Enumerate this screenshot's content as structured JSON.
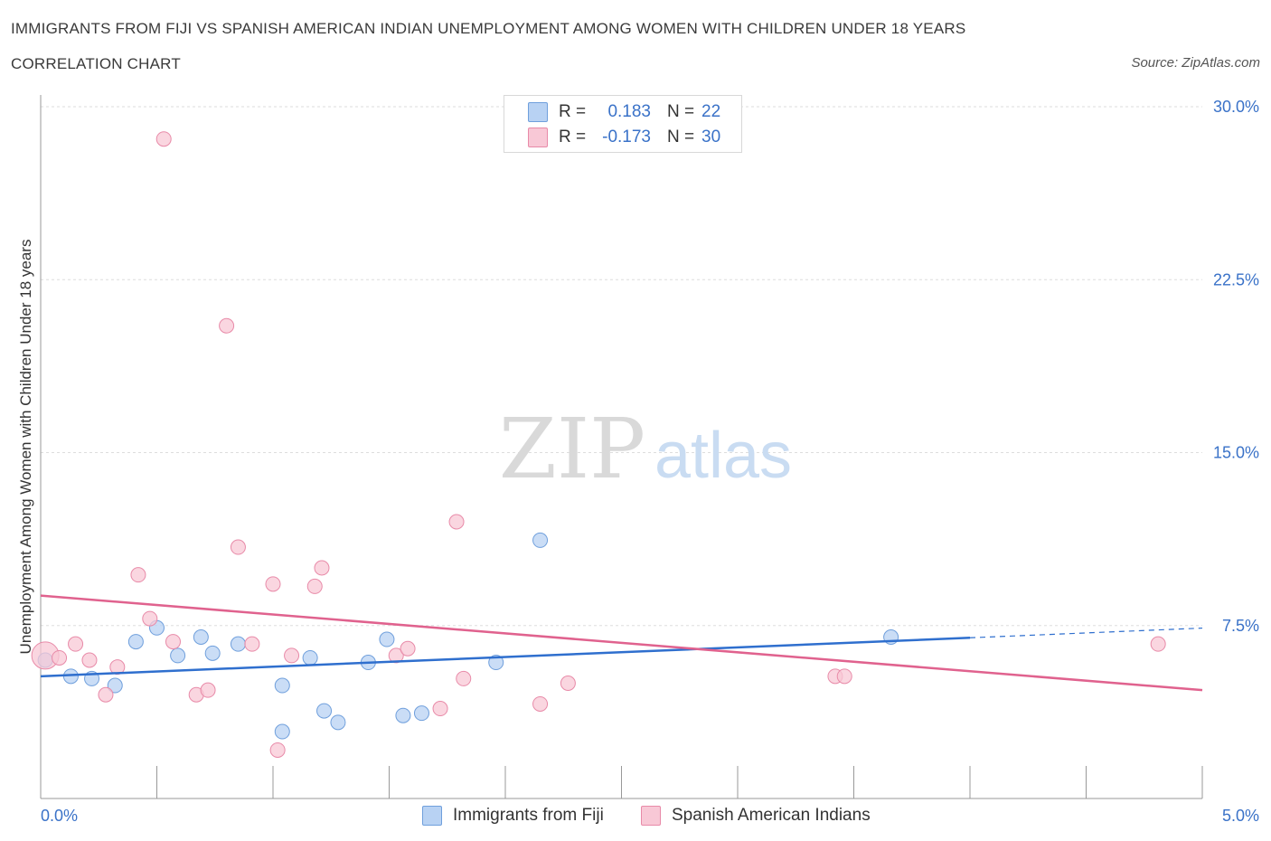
{
  "header": {
    "title": "IMMIGRANTS FROM FIJI VS SPANISH AMERICAN INDIAN UNEMPLOYMENT AMONG WOMEN WITH CHILDREN UNDER 18 YEARS",
    "subtitle": "CORRELATION CHART",
    "source": "Source: ZipAtlas.com"
  },
  "watermark": {
    "zip": "ZIP",
    "atlas": "atlas"
  },
  "legend": {
    "r_label": "R =",
    "n_label": "N =",
    "series": [
      {
        "r": "0.183",
        "n": "22"
      },
      {
        "r": "-0.173",
        "n": "30"
      }
    ]
  },
  "colors": {
    "blue_fill": "#b8d2f3",
    "blue_stroke": "#6f9fdc",
    "blue_line": "#2f6fce",
    "pink_fill": "#f8c8d6",
    "pink_stroke": "#e88aa8",
    "pink_line": "#e0628e",
    "tick_text": "#3a72c8",
    "grid": "#dddddd"
  },
  "chart_data": {
    "type": "scatter",
    "title": "IMMIGRANTS FROM FIJI VS SPANISH AMERICAN INDIAN UNEMPLOYMENT AMONG WOMEN WITH CHILDREN UNDER 18 YEARS",
    "xlabel": "",
    "ylabel": "Unemployment Among Women with Children Under 18 years",
    "xlim": [
      0,
      5
    ],
    "ylim": [
      0,
      30
    ],
    "x_tick_labels": [
      {
        "value": 0,
        "label": "0.0%"
      },
      {
        "value": 5,
        "label": "5.0%"
      }
    ],
    "y_tick_labels": [
      {
        "value": 7.5,
        "label": "7.5%"
      },
      {
        "value": 15,
        "label": "15.0%"
      },
      {
        "value": 22.5,
        "label": "22.5%"
      },
      {
        "value": 30,
        "label": "30.0%"
      }
    ],
    "grid": true,
    "legend_position": "bottom",
    "series": [
      {
        "name": "Immigrants from Fiji",
        "color": "#6f9fdc",
        "points": [
          [
            0.02,
            6.0
          ],
          [
            0.13,
            5.3
          ],
          [
            0.22,
            5.2
          ],
          [
            0.32,
            4.9
          ],
          [
            0.41,
            6.8
          ],
          [
            0.5,
            7.4
          ],
          [
            0.59,
            6.2
          ],
          [
            0.69,
            7.0
          ],
          [
            0.74,
            6.3
          ],
          [
            0.85,
            6.7
          ],
          [
            1.04,
            2.9
          ],
          [
            1.04,
            4.9
          ],
          [
            1.16,
            6.1
          ],
          [
            1.22,
            3.8
          ],
          [
            1.28,
            3.3
          ],
          [
            1.41,
            5.9
          ],
          [
            1.49,
            6.9
          ],
          [
            1.56,
            3.6
          ],
          [
            1.64,
            3.7
          ],
          [
            1.96,
            5.9
          ],
          [
            2.15,
            11.2
          ],
          [
            3.66,
            7.0
          ]
        ],
        "trend": {
          "x": [
            0,
            4.0
          ],
          "y": [
            5.3,
            6.97
          ]
        },
        "trend_dashed": {
          "x": [
            4.0,
            5.0
          ],
          "y": [
            6.97,
            7.39
          ]
        }
      },
      {
        "name": "Spanish American Indians",
        "color": "#e88aa8",
        "points": [
          [
            0.02,
            6.2
          ],
          [
            0.08,
            6.1
          ],
          [
            0.15,
            6.7
          ],
          [
            0.21,
            6.0
          ],
          [
            0.28,
            4.5
          ],
          [
            0.33,
            5.7
          ],
          [
            0.42,
            9.7
          ],
          [
            0.47,
            7.8
          ],
          [
            0.53,
            28.6
          ],
          [
            0.57,
            6.8
          ],
          [
            0.67,
            4.5
          ],
          [
            0.72,
            4.7
          ],
          [
            0.8,
            20.5
          ],
          [
            0.85,
            10.9
          ],
          [
            0.91,
            6.7
          ],
          [
            1.0,
            9.3
          ],
          [
            1.02,
            2.1
          ],
          [
            1.08,
            6.2
          ],
          [
            1.18,
            9.2
          ],
          [
            1.21,
            10.0
          ],
          [
            1.53,
            6.2
          ],
          [
            1.58,
            6.5
          ],
          [
            1.72,
            3.9
          ],
          [
            1.79,
            12.0
          ],
          [
            1.82,
            5.2
          ],
          [
            2.15,
            4.1
          ],
          [
            2.27,
            5.0
          ],
          [
            3.42,
            5.3
          ],
          [
            3.46,
            5.3
          ],
          [
            4.81,
            6.7
          ]
        ],
        "trend": {
          "x": [
            0,
            5.0
          ],
          "y": [
            8.8,
            4.7
          ]
        }
      }
    ]
  },
  "bottom_legend": {
    "items": [
      {
        "label": "Immigrants from Fiji"
      },
      {
        "label": "Spanish American Indians"
      }
    ]
  }
}
